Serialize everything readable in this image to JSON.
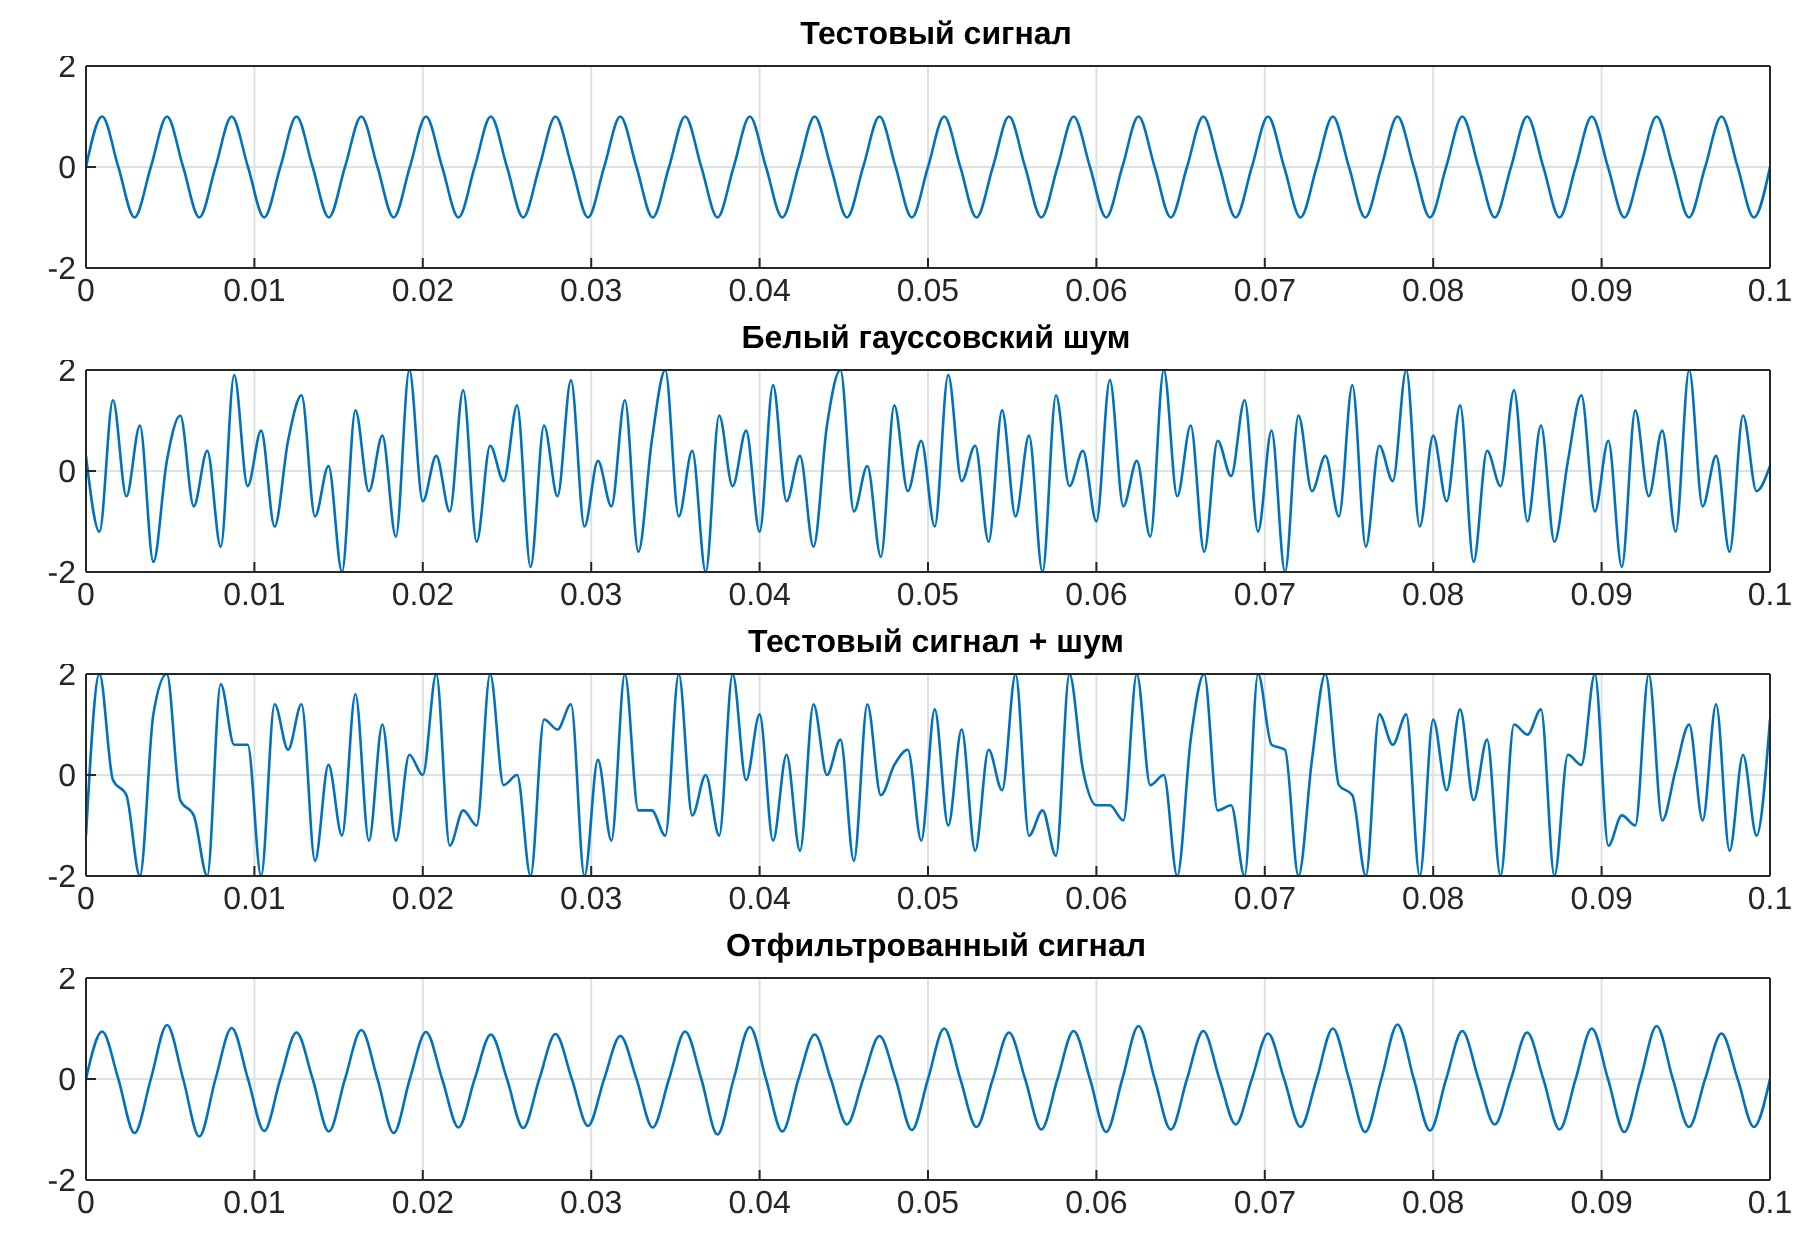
{
  "chart_data": [
    {
      "type": "line",
      "title": "Тестовый сигнал",
      "color": "#0072bd",
      "grid": true,
      "xlim": [
        0,
        0.1
      ],
      "xticks": [
        0,
        0.01,
        0.02,
        0.03,
        0.04,
        0.05,
        0.06,
        0.07,
        0.08,
        0.09,
        0.1
      ],
      "ylim": [
        -2,
        2
      ],
      "yticks": [
        -2,
        0,
        2
      ],
      "x": [
        0,
        0.00096,
        0.00192,
        0.00288,
        0.00385,
        0.00481,
        0.00577,
        0.00673,
        0.00769,
        0.00865,
        0.00962,
        0.01058,
        0.01154,
        0.0125,
        0.01346,
        0.01442,
        0.01538,
        0.01635,
        0.01731,
        0.01827,
        0.01923,
        0.02019,
        0.02115,
        0.02212,
        0.02308,
        0.02404,
        0.025,
        0.02596,
        0.02692,
        0.02788,
        0.02885,
        0.02981,
        0.03077,
        0.03173,
        0.03269,
        0.03365,
        0.03462,
        0.03558,
        0.03654,
        0.0375,
        0.03846,
        0.03942,
        0.04038,
        0.04135,
        0.04231,
        0.04327,
        0.04423,
        0.04519,
        0.04615,
        0.04712,
        0.04808,
        0.04904,
        0.05,
        0.05096,
        0.05192,
        0.05288,
        0.05385,
        0.05481,
        0.05577,
        0.05673,
        0.05769,
        0.05865,
        0.05962,
        0.06058,
        0.06154,
        0.0625,
        0.06346,
        0.06442,
        0.06538,
        0.06635,
        0.06731,
        0.06827,
        0.06923,
        0.07019,
        0.07115,
        0.07212,
        0.07308,
        0.07404,
        0.075,
        0.07596,
        0.07692,
        0.07788,
        0.07885,
        0.07981,
        0.08077,
        0.08173,
        0.08269,
        0.08365,
        0.08462,
        0.08558,
        0.08654,
        0.0875,
        0.08846,
        0.08942,
        0.09038,
        0.09135,
        0.09231,
        0.09327,
        0.09423,
        0.09519,
        0.09615,
        0.09712,
        0.09808,
        0.09904,
        0.1
      ],
      "values": [
        0,
        1,
        0,
        -1,
        0,
        1,
        0,
        -1,
        0,
        1,
        0,
        -1,
        0,
        1,
        0,
        -1,
        0,
        1,
        0,
        -1,
        0,
        1,
        0,
        -1,
        0,
        1,
        0,
        -1,
        0,
        1,
        0,
        -1,
        0,
        1,
        0,
        -1,
        0,
        1,
        0,
        -1,
        0,
        1,
        0,
        -1,
        0,
        1,
        0,
        -1,
        0,
        1,
        0,
        -1,
        0,
        1,
        0,
        -1,
        0,
        1,
        0,
        -1,
        0,
        1,
        0,
        -1,
        0,
        1,
        0,
        -1,
        0,
        1,
        0,
        -1,
        0,
        1,
        0,
        -1,
        0,
        1,
        0,
        -1,
        0,
        1,
        0,
        -1,
        0,
        1,
        0,
        -1,
        0,
        1,
        0,
        -1,
        0,
        1,
        0,
        -1,
        0,
        1,
        0,
        -1,
        0,
        1,
        0,
        -1,
        0
      ]
    },
    {
      "type": "line",
      "title": "Белый гауссовский шум",
      "color": "#0072bd",
      "grid": true,
      "xlim": [
        0,
        0.1
      ],
      "xticks": [
        0,
        0.01,
        0.02,
        0.03,
        0.04,
        0.05,
        0.06,
        0.07,
        0.08,
        0.09,
        0.1
      ],
      "ylim": [
        -2,
        2
      ],
      "yticks": [
        -2,
        0,
        2
      ],
      "x": [
        0,
        0.0008,
        0.0016,
        0.0024,
        0.0032,
        0.004,
        0.0048,
        0.0056,
        0.0064,
        0.0072,
        0.008,
        0.0088,
        0.0096,
        0.0104,
        0.0112,
        0.012,
        0.0128,
        0.0136,
        0.0144,
        0.0152,
        0.016,
        0.0168,
        0.0176,
        0.0184,
        0.0192,
        0.02,
        0.0208,
        0.0216,
        0.0224,
        0.0232,
        0.024,
        0.0248,
        0.0256,
        0.0264,
        0.0272,
        0.028,
        0.0288,
        0.0296,
        0.0304,
        0.0312,
        0.032,
        0.0328,
        0.0336,
        0.0344,
        0.0352,
        0.036,
        0.0368,
        0.0376,
        0.0384,
        0.0392,
        0.04,
        0.0408,
        0.0416,
        0.0424,
        0.0432,
        0.044,
        0.0448,
        0.0456,
        0.0464,
        0.0472,
        0.048,
        0.0488,
        0.0496,
        0.0504,
        0.0512,
        0.052,
        0.0528,
        0.0536,
        0.0544,
        0.0552,
        0.056,
        0.0568,
        0.0576,
        0.0584,
        0.0592,
        0.06,
        0.0608,
        0.0616,
        0.0624,
        0.0632,
        0.064,
        0.0648,
        0.0656,
        0.0664,
        0.0672,
        0.068,
        0.0688,
        0.0696,
        0.0704,
        0.0712,
        0.072,
        0.0728,
        0.0736,
        0.0744,
        0.0752,
        0.076,
        0.0768,
        0.0776,
        0.0784,
        0.0792,
        0.08,
        0.0808,
        0.0816,
        0.0824,
        0.0832,
        0.084,
        0.0848,
        0.0856,
        0.0864,
        0.0872,
        0.088,
        0.0888,
        0.0896,
        0.0904,
        0.0912,
        0.092,
        0.0928,
        0.0936,
        0.0944,
        0.0952,
        0.096,
        0.0968,
        0.0976,
        0.0984,
        0.0992,
        0.1
      ],
      "values": [
        0.3,
        -1.2,
        1.4,
        -0.5,
        0.9,
        -1.8,
        0.2,
        1.1,
        -0.7,
        0.4,
        -1.5,
        1.9,
        -0.3,
        0.8,
        -1.1,
        0.6,
        1.5,
        -0.9,
        0.1,
        -2,
        1.2,
        -0.4,
        0.7,
        -1.3,
        2,
        -0.6,
        0.3,
        -0.8,
        1.6,
        -1.4,
        0.5,
        -0.2,
        1.3,
        -1.9,
        0.9,
        -0.5,
        1.8,
        -1.1,
        0.2,
        -0.7,
        1.4,
        -1.6,
        0.6,
        2,
        -0.9,
        0.4,
        -2,
        1.1,
        -0.3,
        0.8,
        -1.2,
        1.7,
        -0.6,
        0.3,
        -1.5,
        0.9,
        2,
        -0.8,
        0.1,
        -1.7,
        1.3,
        -0.4,
        0.6,
        -1.1,
        1.9,
        -0.2,
        0.5,
        -1.4,
        1.2,
        -0.9,
        0.7,
        -2,
        1.5,
        -0.3,
        0.4,
        -1,
        1.8,
        -0.7,
        0.2,
        -1.3,
        2,
        -0.5,
        0.9,
        -1.6,
        0.6,
        -0.1,
        1.4,
        -1.2,
        0.8,
        -2,
        1.1,
        -0.4,
        0.3,
        -0.9,
        1.7,
        -1.5,
        0.5,
        -0.2,
        2,
        -1.1,
        0.7,
        -0.6,
        1.3,
        -1.8,
        0.4,
        -0.3,
        1.6,
        -1,
        0.9,
        -1.4,
        0.2,
        1.5,
        -0.8,
        0.6,
        -1.9,
        1.2,
        -0.5,
        0.8,
        -1.2,
        2,
        -0.7,
        0.3,
        -1.6,
        1.1,
        -0.4,
        0.1
      ]
    },
    {
      "type": "line",
      "title": "Тестовый сигнал + шум",
      "color": "#0072bd",
      "grid": true,
      "xlim": [
        0,
        0.1
      ],
      "xticks": [
        0,
        0.01,
        0.02,
        0.03,
        0.04,
        0.05,
        0.06,
        0.07,
        0.08,
        0.09,
        0.1
      ],
      "ylim": [
        -2,
        2
      ],
      "yticks": [
        -2,
        0,
        2
      ],
      "x": [
        0,
        0.0008,
        0.0016,
        0.0024,
        0.0032,
        0.004,
        0.0048,
        0.0056,
        0.0064,
        0.0072,
        0.008,
        0.0088,
        0.0096,
        0.0104,
        0.0112,
        0.012,
        0.0128,
        0.0136,
        0.0144,
        0.0152,
        0.016,
        0.0168,
        0.0176,
        0.0184,
        0.0192,
        0.02,
        0.0208,
        0.0216,
        0.0224,
        0.0232,
        0.024,
        0.0248,
        0.0256,
        0.0264,
        0.0272,
        0.028,
        0.0288,
        0.0296,
        0.0304,
        0.0312,
        0.032,
        0.0328,
        0.0336,
        0.0344,
        0.0352,
        0.036,
        0.0368,
        0.0376,
        0.0384,
        0.0392,
        0.04,
        0.0408,
        0.0416,
        0.0424,
        0.0432,
        0.044,
        0.0448,
        0.0456,
        0.0464,
        0.0472,
        0.048,
        0.0488,
        0.0496,
        0.0504,
        0.0512,
        0.052,
        0.0528,
        0.0536,
        0.0544,
        0.0552,
        0.056,
        0.0568,
        0.0576,
        0.0584,
        0.0592,
        0.06,
        0.0608,
        0.0616,
        0.0624,
        0.0632,
        0.064,
        0.0648,
        0.0656,
        0.0664,
        0.0672,
        0.068,
        0.0688,
        0.0696,
        0.0704,
        0.0712,
        0.072,
        0.0728,
        0.0736,
        0.0744,
        0.0752,
        0.076,
        0.0768,
        0.0776,
        0.0784,
        0.0792,
        0.08,
        0.0808,
        0.0816,
        0.0824,
        0.0832,
        0.084,
        0.0848,
        0.0856,
        0.0864,
        0.0872,
        0.088,
        0.0888,
        0.0896,
        0.0904,
        0.0912,
        0.092,
        0.0928,
        0.0936,
        0.0944,
        0.0952,
        0.096,
        0.0968,
        0.0976,
        0.0984,
        0.0992,
        0.1
      ],
      "values": [
        -1.2,
        2,
        -0.1,
        -0.4,
        -2,
        1.2,
        2,
        -0.5,
        -0.8,
        -2,
        1.8,
        0.6,
        0.6,
        -2,
        1.4,
        0.5,
        1.4,
        -1.7,
        0.2,
        -1.2,
        1.6,
        -1.3,
        1,
        -1.3,
        0.4,
        0,
        2,
        -1.4,
        -0.7,
        -1,
        2,
        -0.2,
        0,
        -2,
        1.1,
        0.9,
        1.4,
        -2,
        0.3,
        -1.3,
        2,
        -0.7,
        -0.7,
        -1.2,
        2,
        -0.8,
        0,
        -1.2,
        2,
        -0.1,
        1.2,
        -1.3,
        0.4,
        -1.5,
        1.4,
        0,
        0.7,
        -1.7,
        1.4,
        -0.4,
        0.2,
        0.5,
        -1.3,
        1.3,
        -1,
        0.9,
        -1.5,
        0.5,
        -0.3,
        2,
        -1.2,
        -0.7,
        -1.6,
        2,
        0.1,
        -0.6,
        -0.6,
        -0.9,
        2,
        -0.2,
        0,
        -2,
        0.7,
        2,
        -0.7,
        -0.6,
        -2,
        2,
        0.6,
        0.5,
        -2,
        0.3,
        2,
        -0.2,
        -0.4,
        -2,
        1.2,
        0.6,
        1.2,
        -2,
        1.1,
        -0.3,
        1.3,
        -0.5,
        0.7,
        -2,
        1,
        0.8,
        1.3,
        -2,
        0.4,
        0.2,
        2,
        -1.4,
        -0.8,
        -1,
        2,
        -0.9,
        0.1,
        1,
        -0.9,
        1.4,
        -1.5,
        0.4,
        -1.2,
        1.1
      ]
    },
    {
      "type": "line",
      "title": "Отфильтрованный сигнал",
      "color": "#0072bd",
      "grid": true,
      "xlim": [
        0,
        0.1
      ],
      "xticks": [
        0,
        0.01,
        0.02,
        0.03,
        0.04,
        0.05,
        0.06,
        0.07,
        0.08,
        0.09,
        0.1
      ],
      "ylim": [
        -2,
        2
      ],
      "yticks": [
        -2,
        0,
        2
      ],
      "x": [
        0,
        0.00096,
        0.00192,
        0.00288,
        0.00385,
        0.00481,
        0.00577,
        0.00673,
        0.00769,
        0.00865,
        0.00962,
        0.01058,
        0.01154,
        0.0125,
        0.01346,
        0.01442,
        0.01538,
        0.01635,
        0.01731,
        0.01827,
        0.01923,
        0.02019,
        0.02115,
        0.02212,
        0.02308,
        0.02404,
        0.025,
        0.02596,
        0.02692,
        0.02788,
        0.02885,
        0.02981,
        0.03077,
        0.03173,
        0.03269,
        0.03365,
        0.03462,
        0.03558,
        0.03654,
        0.0375,
        0.03846,
        0.03942,
        0.04038,
        0.04135,
        0.04231,
        0.04327,
        0.04423,
        0.04519,
        0.04615,
        0.04712,
        0.04808,
        0.04904,
        0.05,
        0.05096,
        0.05192,
        0.05288,
        0.05385,
        0.05481,
        0.05577,
        0.05673,
        0.05769,
        0.05865,
        0.05962,
        0.06058,
        0.06154,
        0.0625,
        0.06346,
        0.06442,
        0.06538,
        0.06635,
        0.06731,
        0.06827,
        0.06923,
        0.07019,
        0.07115,
        0.07212,
        0.07308,
        0.07404,
        0.075,
        0.07596,
        0.07692,
        0.07788,
        0.07885,
        0.07981,
        0.08077,
        0.08173,
        0.08269,
        0.08365,
        0.08462,
        0.08558,
        0.08654,
        0.0875,
        0.08846,
        0.08942,
        0.09038,
        0.09135,
        0.09231,
        0.09327,
        0.09423,
        0.09519,
        0.09615,
        0.09712,
        0.09808,
        0.09904,
        0.1
      ],
      "values": [
        0,
        0.94,
        0,
        -1.07,
        0,
        1.07,
        0,
        -1.14,
        0,
        1.01,
        0,
        -1.03,
        0,
        0.92,
        0,
        -1.04,
        0,
        0.97,
        0,
        -1.07,
        0,
        0.93,
        0,
        -0.96,
        0,
        0.88,
        0,
        -0.97,
        0,
        0.89,
        0,
        -0.93,
        0,
        0.85,
        0,
        -0.96,
        0,
        0.94,
        0,
        -1.1,
        0,
        1.03,
        0,
        -1.04,
        0,
        0.88,
        0,
        -0.9,
        0,
        0.85,
        0,
        -1.01,
        0,
        1,
        0,
        -0.95,
        0,
        0.92,
        0,
        -1,
        0,
        0.95,
        0,
        -1.05,
        0,
        1.05,
        0,
        -1,
        0,
        0.95,
        0,
        -0.9,
        0,
        0.9,
        0,
        -0.95,
        0,
        1,
        0,
        -1.05,
        0,
        1.08,
        0,
        -1.02,
        0,
        0.95,
        0,
        -0.9,
        0,
        0.92,
        0,
        -1,
        0,
        1,
        0,
        -1.05,
        0,
        1.05,
        0,
        -0.95,
        0,
        0.9,
        0,
        -0.95,
        0
      ]
    }
  ]
}
